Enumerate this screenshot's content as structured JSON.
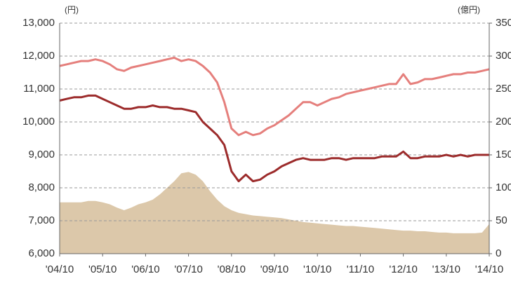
{
  "chart_data": {
    "type": "line",
    "y_unit": "(円)",
    "y2_unit": "(億円)",
    "xlim": [
      0,
      120
    ],
    "xticks": [
      {
        "value": 0,
        "label": "'04/10"
      },
      {
        "value": 12,
        "label": "'05/10"
      },
      {
        "value": 24,
        "label": "'06/10"
      },
      {
        "value": 36,
        "label": "'07/10"
      },
      {
        "value": 48,
        "label": "'08/10"
      },
      {
        "value": 60,
        "label": "'09/10"
      },
      {
        "value": 72,
        "label": "'10/10"
      },
      {
        "value": 84,
        "label": "'11/10"
      },
      {
        "value": 96,
        "label": "'12/10"
      },
      {
        "value": 108,
        "label": "'13/10"
      },
      {
        "value": 120,
        "label": "'14/10"
      }
    ],
    "ylim": [
      6000,
      13000
    ],
    "yticks": [
      {
        "value": 6000,
        "label": "6,000"
      },
      {
        "value": 7000,
        "label": "7,000"
      },
      {
        "value": 8000,
        "label": "8,000"
      },
      {
        "value": 9000,
        "label": "9,000"
      },
      {
        "value": 10000,
        "label": "10,000"
      },
      {
        "value": 11000,
        "label": "11,000"
      },
      {
        "value": 12000,
        "label": "12,000"
      },
      {
        "value": 13000,
        "label": "13,000"
      }
    ],
    "y2lim": [
      0,
      350
    ],
    "y2ticks": [
      0,
      50,
      100,
      150,
      200,
      250,
      300,
      350
    ],
    "grid": true,
    "x": [
      0,
      2,
      4,
      6,
      8,
      10,
      12,
      14,
      16,
      18,
      20,
      22,
      24,
      26,
      28,
      30,
      32,
      34,
      36,
      38,
      40,
      42,
      44,
      46,
      48,
      50,
      52,
      54,
      56,
      58,
      60,
      62,
      64,
      66,
      68,
      70,
      72,
      74,
      76,
      78,
      80,
      82,
      84,
      86,
      88,
      90,
      92,
      94,
      96,
      98,
      100,
      102,
      104,
      106,
      108,
      110,
      112,
      114,
      116,
      118,
      120
    ],
    "series": [
      {
        "kind": "area",
        "axis": "y2",
        "color": "#dcc8aa",
        "values": [
          78,
          78,
          78,
          78,
          80,
          80,
          78,
          75,
          70,
          66,
          70,
          75,
          78,
          82,
          90,
          100,
          110,
          122,
          124,
          120,
          110,
          95,
          82,
          72,
          66,
          62,
          60,
          58,
          57,
          56,
          55,
          54,
          52,
          50,
          48,
          47,
          46,
          45,
          44,
          43,
          42,
          42,
          41,
          40,
          39,
          38,
          37,
          36,
          35,
          35,
          34,
          34,
          33,
          32,
          32,
          31,
          31,
          31,
          31,
          32,
          45
        ]
      },
      {
        "kind": "line",
        "color": "#e57f7c",
        "values": [
          11700,
          11750,
          11800,
          11850,
          11850,
          11900,
          11850,
          11750,
          11600,
          11550,
          11650,
          11700,
          11750,
          11800,
          11850,
          11900,
          11950,
          11850,
          11900,
          11850,
          11700,
          11500,
          11200,
          10600,
          9800,
          9600,
          9700,
          9600,
          9650,
          9800,
          9900,
          10050,
          10200,
          10400,
          10600,
          10600,
          10500,
          10600,
          10700,
          10750,
          10850,
          10900,
          10950,
          11000,
          11050,
          11100,
          11150,
          11150,
          11450,
          11150,
          11200,
          11300,
          11300,
          11350,
          11400,
          11450,
          11450,
          11500,
          11500,
          11550,
          11600
        ]
      },
      {
        "kind": "line",
        "color": "#9c2b2b",
        "values": [
          10650,
          10700,
          10750,
          10750,
          10800,
          10800,
          10700,
          10600,
          10500,
          10400,
          10400,
          10450,
          10450,
          10500,
          10450,
          10450,
          10400,
          10400,
          10350,
          10300,
          10000,
          9800,
          9600,
          9300,
          8500,
          8200,
          8400,
          8200,
          8250,
          8400,
          8500,
          8650,
          8750,
          8850,
          8900,
          8850,
          8850,
          8850,
          8900,
          8900,
          8850,
          8900,
          8900,
          8900,
          8900,
          8950,
          8950,
          8950,
          9100,
          8900,
          8900,
          8950,
          8950,
          8950,
          9000,
          8950,
          9000,
          8950,
          9000,
          9000,
          9000
        ]
      }
    ]
  }
}
